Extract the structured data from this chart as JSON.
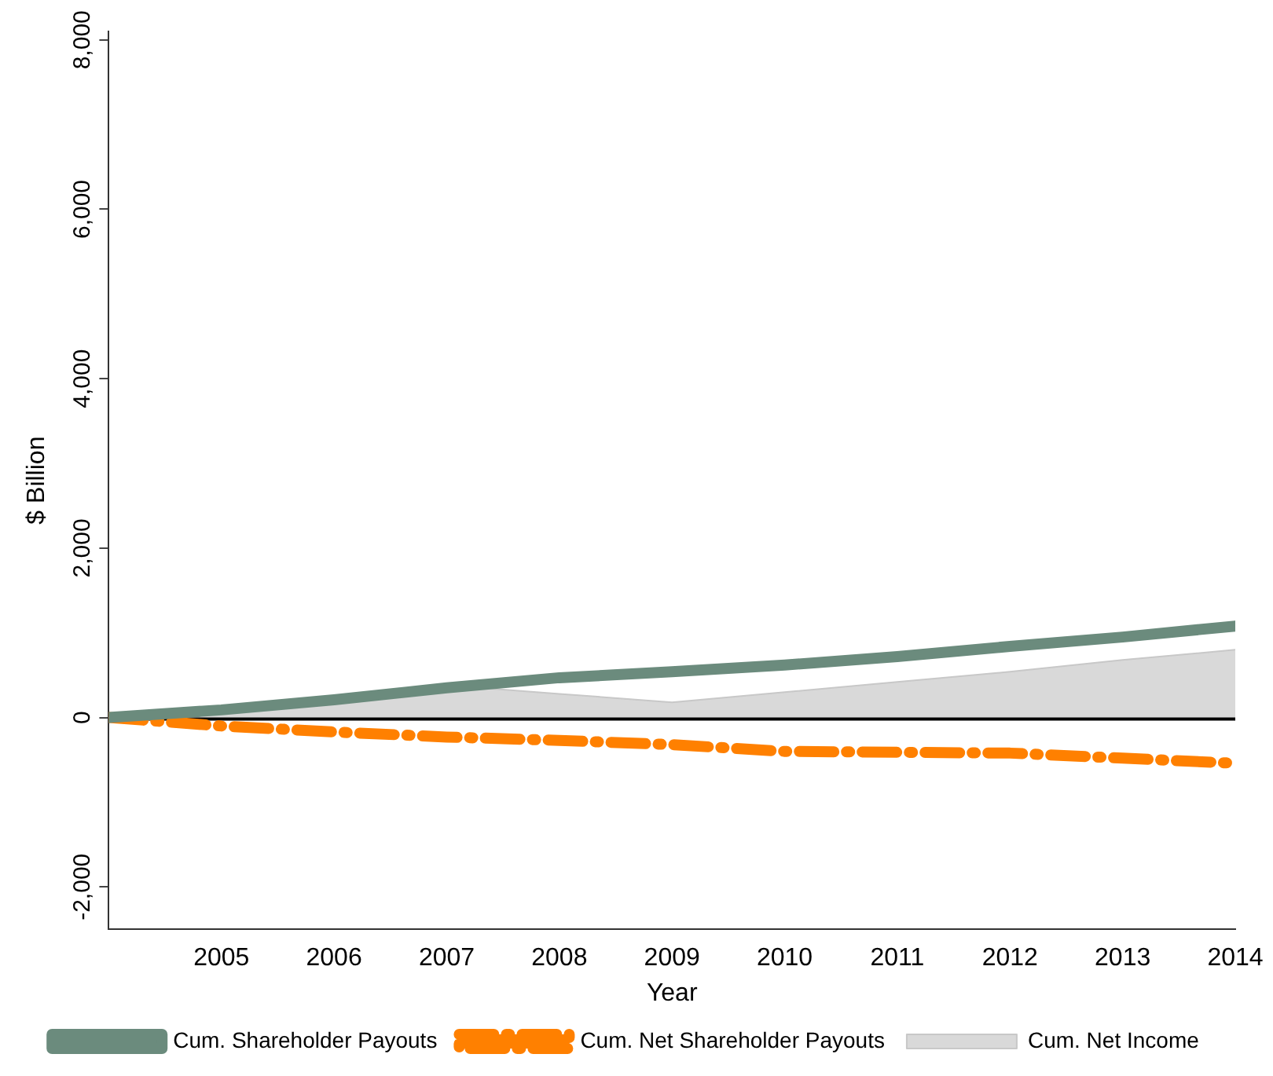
{
  "chart_data": {
    "type": "line",
    "xlabel": "Year",
    "ylabel": "$ Billion",
    "x": [
      2004,
      2005,
      2006,
      2007,
      2008,
      2009,
      2010,
      2011,
      2012,
      2013,
      2014
    ],
    "series": [
      {
        "name": "Cum. Shareholder Payouts",
        "color": "#6b8b7d",
        "line_style": "solid",
        "values": [
          0,
          90,
          210,
          350,
          470,
          540,
          620,
          720,
          840,
          950,
          1080
        ]
      },
      {
        "name": "Cum. Net Shareholder Payouts",
        "color": "#ff8000",
        "line_style": "dashed",
        "values": [
          0,
          -100,
          -170,
          -230,
          -270,
          -320,
          -400,
          -410,
          -420,
          -480,
          -540
        ]
      },
      {
        "name": "Cum. Net Income",
        "type": "area",
        "color": "#d9d9d9",
        "values": [
          0,
          80,
          220,
          380,
          280,
          180,
          300,
          420,
          540,
          680,
          800
        ]
      }
    ],
    "xlim": [
      2004,
      2014
    ],
    "xticks": [
      2005,
      2006,
      2007,
      2008,
      2009,
      2010,
      2011,
      2012,
      2013,
      2014
    ],
    "ylim": [
      -2500,
      8100
    ],
    "yticks": [
      {
        "value": -2000,
        "label": "-2,000"
      },
      0,
      {
        "value": 2000,
        "label": "2,000"
      },
      {
        "value": 4000,
        "label": "4,000"
      },
      {
        "value": 6000,
        "label": "6,000"
      },
      {
        "value": 8000,
        "label": "8,000"
      }
    ],
    "ref_lines": [
      {
        "axis": "y",
        "value": 0,
        "color": "#000000"
      }
    ],
    "grid": false,
    "legend": "bottom",
    "marker": "none"
  }
}
